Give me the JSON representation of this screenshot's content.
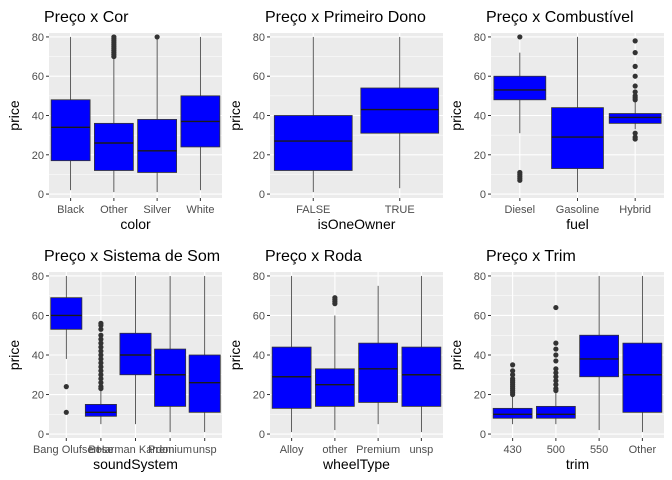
{
  "style": {
    "panel_bg": "#ebebeb",
    "grid_major": "#ffffff",
    "box_fill": "#0000ff",
    "box_line": "#333333",
    "median_line": "#1a1a1a"
  },
  "chart_data": [
    {
      "type": "boxplot",
      "title": "Preço x Cor",
      "xlabel": "color",
      "ylabel": "price",
      "ylim": [
        -2,
        82
      ],
      "yticks": [
        0,
        20,
        40,
        60,
        80
      ],
      "categories": [
        "Black",
        "Other",
        "Silver",
        "White"
      ],
      "boxes": [
        {
          "category": "Black",
          "min": 2,
          "q1": 17,
          "median": 34,
          "q3": 48,
          "max": 80,
          "outliers": []
        },
        {
          "category": "Other",
          "min": 1,
          "q1": 12,
          "median": 26,
          "q3": 36,
          "max": 69,
          "outliers": [
            70,
            71,
            72,
            73,
            74,
            75,
            76,
            77,
            78,
            79,
            80
          ]
        },
        {
          "category": "Silver",
          "min": 1,
          "q1": 11,
          "median": 22,
          "q3": 38,
          "max": 79,
          "outliers": [
            80
          ]
        },
        {
          "category": "White",
          "min": 2,
          "q1": 24,
          "median": 37,
          "q3": 50,
          "max": 80,
          "outliers": []
        }
      ]
    },
    {
      "type": "boxplot",
      "title": "Preço x Primeiro Dono",
      "xlabel": "isOneOwner",
      "ylabel": "price",
      "ylim": [
        -2,
        82
      ],
      "yticks": [
        0,
        20,
        40,
        60,
        80
      ],
      "categories": [
        "FALSE",
        "TRUE"
      ],
      "boxes": [
        {
          "category": "FALSE",
          "min": 1,
          "q1": 12,
          "median": 27,
          "q3": 40,
          "max": 80,
          "outliers": []
        },
        {
          "category": "TRUE",
          "min": 3,
          "q1": 31,
          "median": 43,
          "q3": 54,
          "max": 80,
          "outliers": []
        }
      ]
    },
    {
      "type": "boxplot",
      "title": "Preço x Combustível",
      "xlabel": "fuel",
      "ylabel": "price",
      "ylim": [
        -2,
        82
      ],
      "yticks": [
        0,
        20,
        40,
        60,
        80
      ],
      "categories": [
        "Diesel",
        "Gasoline",
        "Hybrid"
      ],
      "boxes": [
        {
          "category": "Diesel",
          "min": 31,
          "q1": 48,
          "median": 53,
          "q3": 60,
          "max": 72,
          "outliers": [
            80,
            11,
            10,
            9,
            8,
            7
          ]
        },
        {
          "category": "Gasoline",
          "min": 1,
          "q1": 13,
          "median": 29,
          "q3": 44,
          "max": 80,
          "outliers": []
        },
        {
          "category": "Hybrid",
          "min": 33,
          "q1": 36,
          "median": 39,
          "q3": 41,
          "max": 47,
          "outliers": [
            78,
            72,
            65,
            60,
            55,
            52,
            50,
            49,
            48,
            31,
            29,
            28
          ]
        }
      ]
    },
    {
      "type": "boxplot",
      "title": "Preço x Sistema de Som",
      "xlabel": "soundSystem",
      "ylabel": "price",
      "ylim": [
        -2,
        82
      ],
      "yticks": [
        0,
        20,
        40,
        60,
        80
      ],
      "categories": [
        "Bang Olufsen",
        "Bose",
        "Harman Kardon",
        "Premium",
        "unsp"
      ],
      "boxes": [
        {
          "category": "Bang Olufsen",
          "min": 38,
          "q1": 53,
          "median": 60,
          "q3": 69,
          "max": 80,
          "outliers": [
            24,
            11
          ]
        },
        {
          "category": "Bose",
          "min": 5,
          "q1": 9,
          "median": 11,
          "q3": 15,
          "max": 22,
          "outliers": [
            56,
            55,
            53,
            50,
            48,
            46,
            44,
            42,
            40,
            38,
            36,
            34,
            32,
            30,
            28,
            26,
            24,
            23
          ]
        },
        {
          "category": "Harman Kardon",
          "min": 5,
          "q1": 30,
          "median": 40,
          "q3": 51,
          "max": 80,
          "outliers": []
        },
        {
          "category": "Premium",
          "min": 1,
          "q1": 14,
          "median": 30,
          "q3": 43,
          "max": 80,
          "outliers": []
        },
        {
          "category": "unsp",
          "min": 1,
          "q1": 11,
          "median": 26,
          "q3": 40,
          "max": 80,
          "outliers": []
        }
      ]
    },
    {
      "type": "boxplot",
      "title": "Preço x Roda",
      "xlabel": "wheelType",
      "ylabel": "price",
      "ylim": [
        -2,
        82
      ],
      "yticks": [
        0,
        20,
        40,
        60,
        80
      ],
      "categories": [
        "Alloy",
        "other",
        "Premium",
        "unsp"
      ],
      "boxes": [
        {
          "category": "Alloy",
          "min": 1,
          "q1": 13,
          "median": 29,
          "q3": 44,
          "max": 80,
          "outliers": []
        },
        {
          "category": "other",
          "min": 2,
          "q1": 14,
          "median": 25,
          "q3": 33,
          "max": 60,
          "outliers": [
            69,
            68,
            67,
            66
          ]
        },
        {
          "category": "Premium",
          "min": 5,
          "q1": 16,
          "median": 33,
          "q3": 46,
          "max": 75,
          "outliers": []
        },
        {
          "category": "unsp",
          "min": 1,
          "q1": 14,
          "median": 30,
          "q3": 44,
          "max": 80,
          "outliers": []
        }
      ]
    },
    {
      "type": "boxplot",
      "title": "Preço x Trim",
      "xlabel": "trim",
      "ylabel": "price",
      "ylim": [
        -2,
        82
      ],
      "yticks": [
        0,
        20,
        40,
        60,
        80
      ],
      "categories": [
        "430",
        "500",
        "550",
        "Other"
      ],
      "boxes": [
        {
          "category": "430",
          "min": 5,
          "q1": 8,
          "median": 10,
          "q3": 13,
          "max": 19,
          "outliers": [
            35,
            32,
            30,
            28,
            27,
            26,
            25,
            24,
            23,
            22,
            21,
            20
          ]
        },
        {
          "category": "500",
          "min": 5,
          "q1": 8,
          "median": 10,
          "q3": 14,
          "max": 21,
          "outliers": [
            64,
            46,
            43,
            40,
            37,
            33,
            31,
            29,
            27,
            25,
            23,
            22
          ]
        },
        {
          "category": "550",
          "min": 2,
          "q1": 29,
          "median": 38,
          "q3": 50,
          "max": 80,
          "outliers": []
        },
        {
          "category": "Other",
          "min": 1,
          "q1": 11,
          "median": 30,
          "q3": 46,
          "max": 80,
          "outliers": []
        }
      ]
    }
  ]
}
